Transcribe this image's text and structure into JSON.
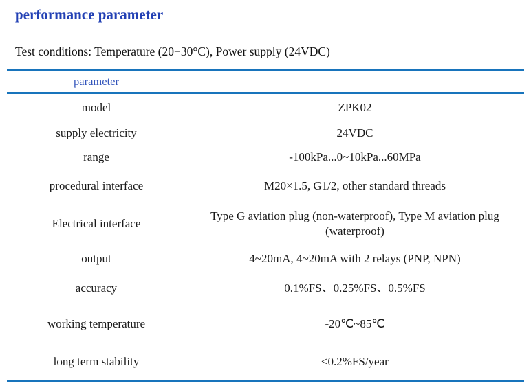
{
  "page": {
    "title": "performance parameter",
    "test_conditions": "Test conditions: Temperature (20−30°C), Power supply (24VDC)"
  },
  "table": {
    "header_left": "parameter",
    "rows": [
      {
        "label": "model",
        "value": "ZPK02"
      },
      {
        "label": "supply electricity",
        "value": "24VDC"
      },
      {
        "label": "range",
        "value": "-100kPa...0~10kPa...60MPa"
      },
      {
        "label": "procedural interface",
        "value": "M20×1.5, G1/2, other standard threads"
      },
      {
        "label": "Electrical interface",
        "value": "Type G aviation plug (non-waterproof), Type M aviation plug (waterproof)"
      },
      {
        "label": "output",
        "value": "4~20mA, 4~20mA with 2 relays (PNP, NPN)"
      },
      {
        "label": "accuracy",
        "value": "0.1%FS、0.25%FS、0.5%FS"
      },
      {
        "label": "working temperature",
        "value": "-20℃~85℃"
      },
      {
        "label": "long term stability",
        "value": "≤0.2%FS/year"
      }
    ]
  },
  "colors": {
    "title_blue": "#2240b4",
    "header_blue": "#3355bb",
    "rule_blue": "#1874bc",
    "body_text": "#1a1a1a"
  }
}
